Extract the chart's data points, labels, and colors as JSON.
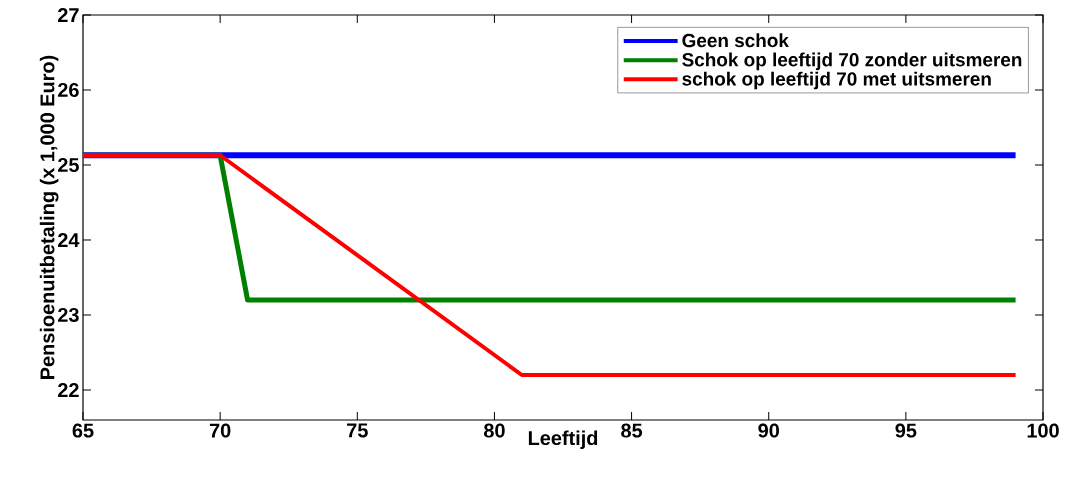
{
  "chart_data": {
    "type": "line",
    "xlabel": "Leeftijd",
    "ylabel": "Pensioenuitbetaling (x 1,000 Euro)",
    "xlim": [
      65,
      100
    ],
    "ylim": [
      21.6,
      27
    ],
    "xticks": [
      65,
      70,
      75,
      80,
      85,
      90,
      95,
      100
    ],
    "yticks": [
      22,
      23,
      24,
      25,
      26,
      27
    ],
    "grid": false,
    "legend": "top right",
    "marker": "none",
    "line_style": "solid",
    "series": [
      {
        "name": "Geen schok",
        "color": "#0000ff",
        "x": [
          65,
          99
        ],
        "values": [
          25.13,
          25.13
        ]
      },
      {
        "name": "Schok op leeftijd 70 zonder uitsmeren",
        "color": "#008000",
        "x": [
          65,
          70,
          71,
          99
        ],
        "values": [
          25.13,
          25.13,
          23.2,
          23.2
        ]
      },
      {
        "name": "schok op leeftijd 70 met uitsmeren",
        "color": "#ff0000",
        "x": [
          65,
          70,
          81,
          99
        ],
        "values": [
          25.13,
          25.13,
          22.2,
          22.2
        ]
      }
    ]
  }
}
